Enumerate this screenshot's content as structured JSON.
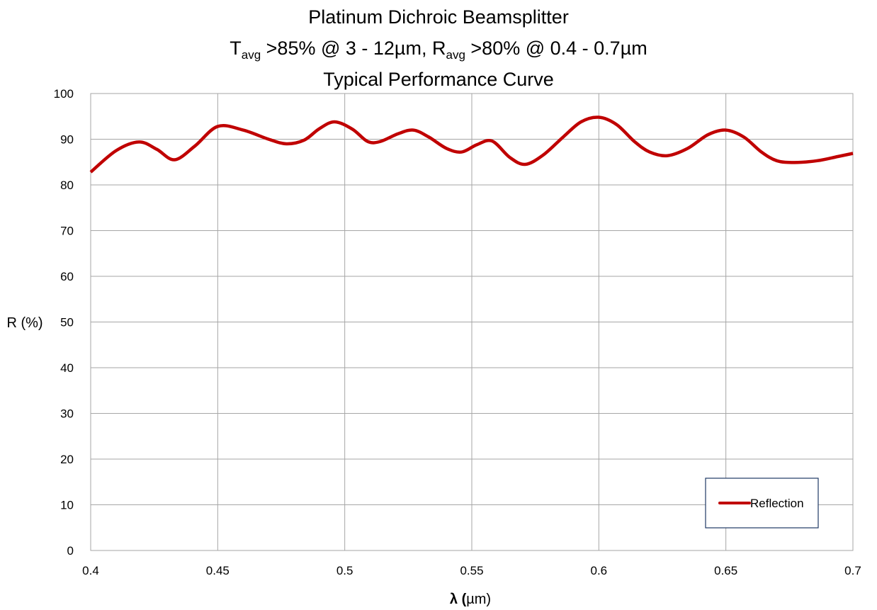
{
  "chart_data": {
    "type": "line",
    "title_line1": "Platinum Dichroic Beamsplitter",
    "title_line2": {
      "t_main": "T",
      "t_sub": "avg",
      "t_rest": " >85% @ 3 - 12µm, ",
      "r_main": "R",
      "r_sub": "avg",
      "r_rest": " >80% @ 0.4 - 0.7µm"
    },
    "title_line3": "Typical Performance Curve",
    "xlabel_symbol": "λ",
    "xlabel_unit_open": " (",
    "xlabel_unit": "µm)",
    "ylabel": "R (%)",
    "xlim": [
      0.4,
      0.7
    ],
    "ylim": [
      0,
      100
    ],
    "x_ticks": [
      "0.4",
      "0.45",
      "0.5",
      "0.55",
      "0.6",
      "0.65",
      "0.7"
    ],
    "x_tick_values": [
      0.4,
      0.45,
      0.5,
      0.55,
      0.6,
      0.65,
      0.7
    ],
    "y_ticks": [
      "0",
      "10",
      "20",
      "30",
      "40",
      "50",
      "60",
      "70",
      "80",
      "90",
      "100"
    ],
    "y_tick_values": [
      0,
      10,
      20,
      30,
      40,
      50,
      60,
      70,
      80,
      90,
      100
    ],
    "grid": true,
    "legend_position": "bottom-right",
    "series": [
      {
        "name": "Reflection",
        "color": "#c00000",
        "x": [
          0.4,
          0.41,
          0.419,
          0.426,
          0.433,
          0.441,
          0.45,
          0.46,
          0.47,
          0.477,
          0.484,
          0.49,
          0.496,
          0.503,
          0.509,
          0.514,
          0.521,
          0.527,
          0.533,
          0.54,
          0.546,
          0.552,
          0.558,
          0.565,
          0.571,
          0.578,
          0.586,
          0.593,
          0.6,
          0.607,
          0.614,
          0.62,
          0.627,
          0.635,
          0.643,
          0.65,
          0.657,
          0.664,
          0.67,
          0.677,
          0.686,
          0.694,
          0.7
        ],
        "y": [
          82.8,
          87.5,
          89.4,
          87.8,
          85.5,
          88.5,
          92.8,
          92.0,
          90.0,
          89.0,
          89.8,
          92.3,
          93.8,
          92.2,
          89.5,
          89.5,
          91.2,
          92.0,
          90.5,
          88.0,
          87.2,
          88.8,
          89.6,
          86.0,
          84.5,
          86.5,
          90.5,
          93.8,
          94.8,
          93.2,
          89.5,
          87.2,
          86.4,
          88.0,
          91.0,
          92.0,
          90.5,
          87.2,
          85.3,
          84.9,
          85.3,
          86.2,
          86.9
        ]
      }
    ]
  }
}
